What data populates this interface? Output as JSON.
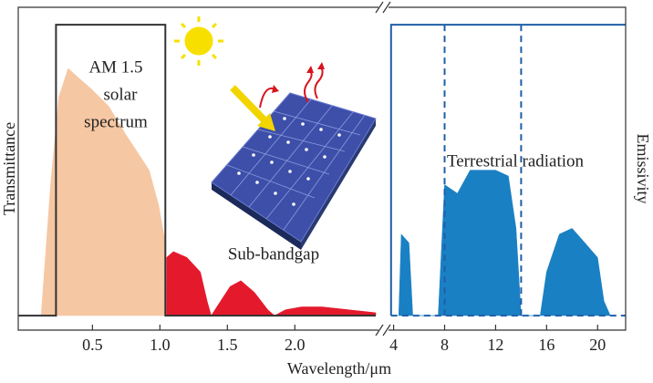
{
  "chart_data": [
    {
      "type": "area",
      "ylabel": "Transmittance",
      "xlabel": "Wavelength/μm",
      "xlim": [
        -0.05,
        2.62
      ],
      "ylim": [
        -0.05,
        1.06
      ],
      "xticks": [
        0.5,
        {
          "value": 1,
          "label": "1.0"
        },
        1.5,
        {
          "value": 2,
          "label": "2.0"
        }
      ],
      "annotations": [
        "AM 1.5",
        "solar",
        "spectrum",
        "Sub-bandgap"
      ],
      "series": [
        {
          "style": "area",
          "color": "#f6c7a3",
          "x": [
            0.12,
            0.19,
            0.25,
            0.32,
            0.39,
            0.49,
            0.62,
            0.75,
            0.85,
            0.92,
            0.99,
            1.04,
            1.05
          ],
          "values": [
            0,
            0.45,
            0.75,
            0.85,
            0.82,
            0.78,
            0.72,
            0.62,
            0.55,
            0.5,
            0.38,
            0.25,
            0
          ]
        },
        {
          "style": "area",
          "color": "#e41a2c",
          "x": [
            1.05,
            1.1,
            1.2,
            1.3,
            1.35,
            1.38,
            1.45,
            1.52,
            1.6,
            1.7,
            1.8,
            1.85,
            1.93,
            2.05,
            2.2,
            2.4,
            2.6
          ],
          "values": [
            0.2,
            0.22,
            0.2,
            0.15,
            0.05,
            0,
            0.05,
            0.1,
            0.12,
            0.08,
            0.02,
            0,
            0.02,
            0.03,
            0.03,
            0.02,
            0.01
          ]
        },
        {
          "style": "line",
          "color": "#333333",
          "x": [
            -0.05,
            0.23,
            0.23,
            1.04,
            1.04,
            2.6
          ],
          "values": [
            0,
            0,
            1,
            1,
            0,
            0
          ]
        }
      ]
    },
    {
      "type": "area",
      "ylabel": "Emissivity",
      "xlim": [
        3.6,
        22.2
      ],
      "ylim": [
        -0.05,
        1.06
      ],
      "xticks": [
        4,
        8,
        12,
        16,
        20
      ],
      "annotations": [
        "Terrestrial radiation"
      ],
      "series": [
        {
          "style": "area",
          "color": "#1a80c4",
          "x": [
            4.4,
            4.6,
            5.2,
            5.5,
            7.5,
            8,
            9,
            10,
            11,
            12,
            13,
            13.6,
            14,
            15.5,
            16,
            17,
            18,
            19,
            20,
            20.5,
            21
          ],
          "values": [
            0,
            0.28,
            0.25,
            0,
            0,
            0.45,
            0.42,
            0.5,
            0.5,
            0.5,
            0.48,
            0.3,
            0,
            0,
            0.15,
            0.28,
            0.3,
            0.25,
            0.2,
            0.05,
            0
          ]
        },
        {
          "style": "line",
          "color": "#1f5fa8",
          "x": [
            3.8,
            3.8,
            22.2
          ],
          "values": [
            0,
            1,
            1
          ]
        },
        {
          "style": "dashed",
          "color": "#1f5fa8",
          "x": [
            3.8,
            22.2
          ],
          "values": [
            0,
            0
          ]
        },
        {
          "style": "dashed",
          "color": "#1f5fa8",
          "x": [
            8,
            8
          ],
          "values": [
            0,
            1
          ]
        },
        {
          "style": "dashed",
          "color": "#1f5fa8",
          "x": [
            14,
            14
          ],
          "values": [
            0,
            1
          ]
        }
      ]
    }
  ]
}
